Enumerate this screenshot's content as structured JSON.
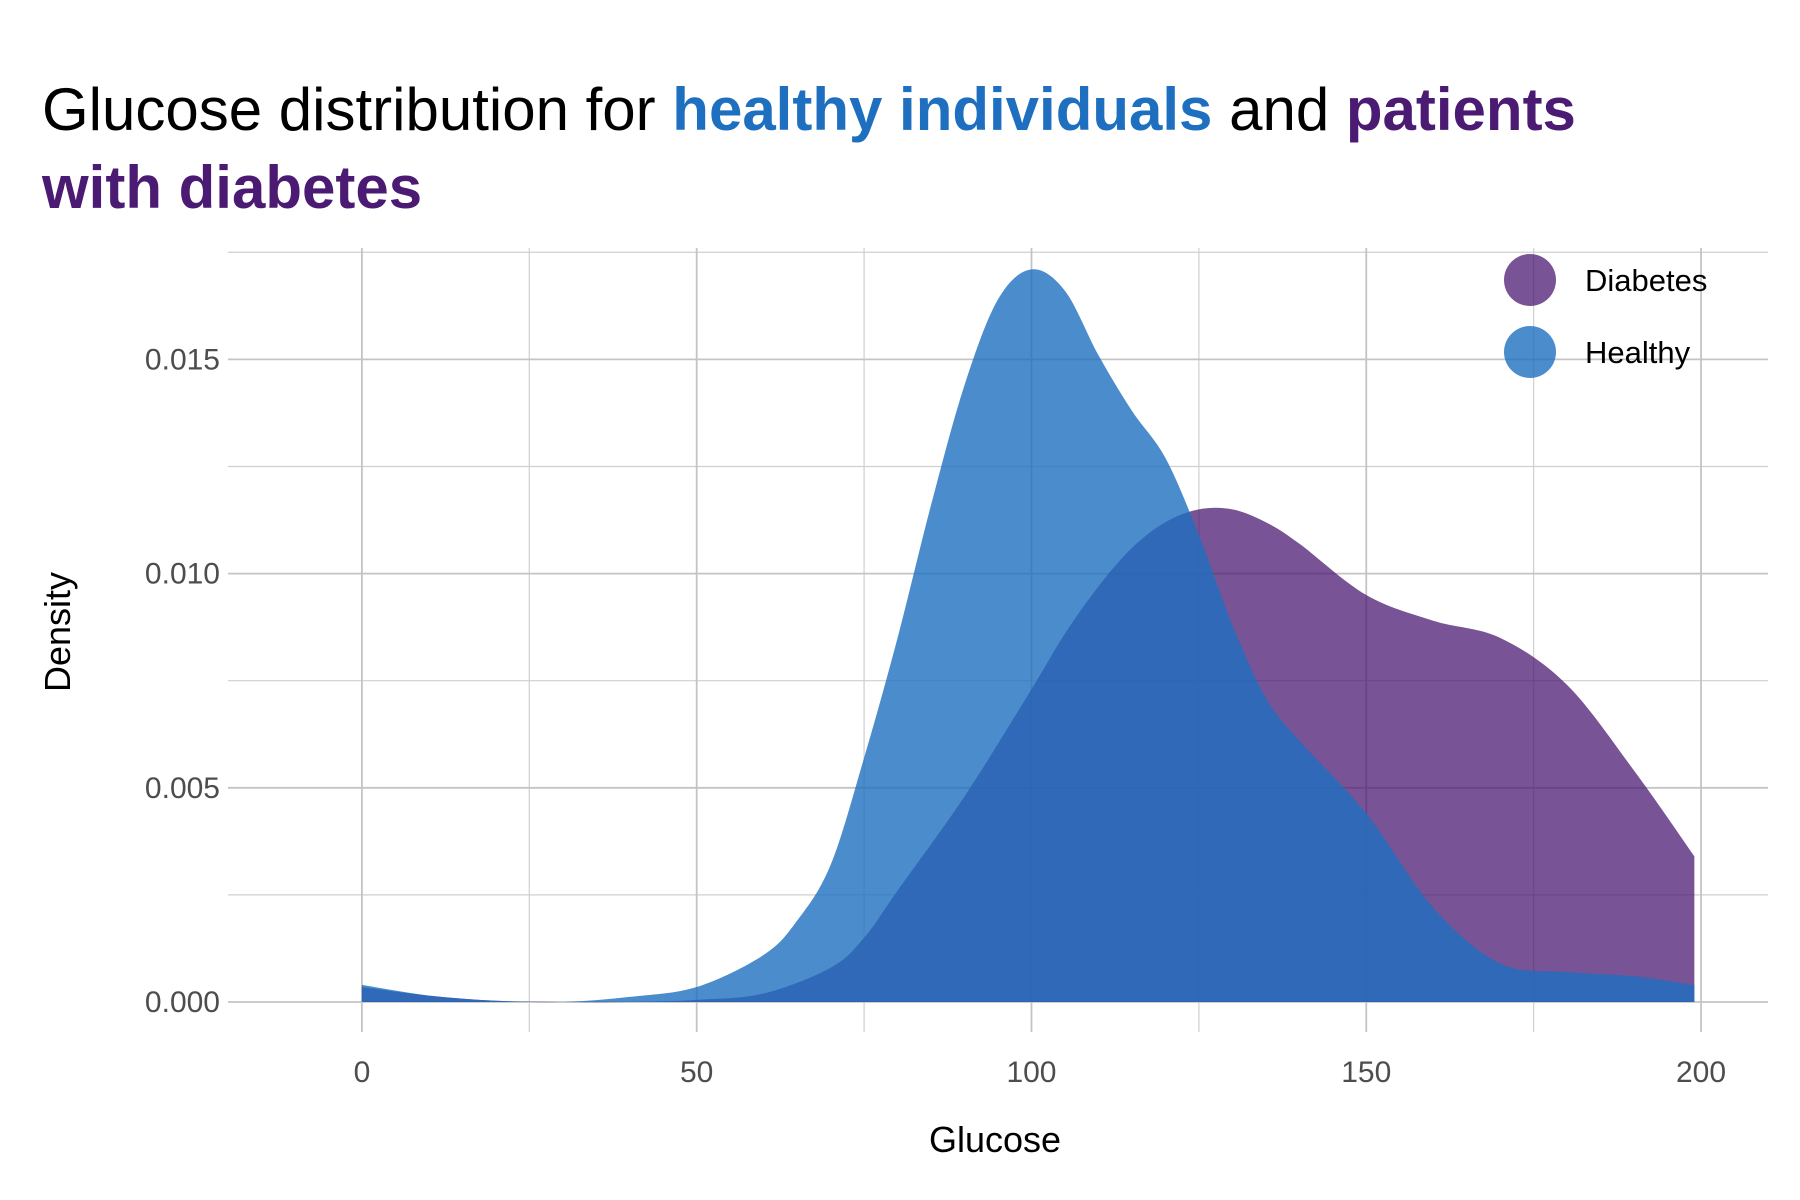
{
  "title": {
    "parts": [
      {
        "text": "Glucose distribution for ",
        "bold": false,
        "color": "#000000",
        "line": 1
      },
      {
        "text": "healthy individuals",
        "bold": true,
        "color": "#1E6FBF",
        "line": 1
      },
      {
        "text": " and ",
        "bold": false,
        "color": "#000000",
        "line": 1
      },
      {
        "text": "patients",
        "bold": true,
        "color": "#4B1A73",
        "line": 1
      },
      {
        "text": "with diabetes",
        "bold": true,
        "color": "#4B1A73",
        "line": 2
      }
    ]
  },
  "chart_data": {
    "type": "area",
    "xlabel": "Glucose",
    "ylabel": "Density",
    "xlim": [
      -20,
      210
    ],
    "ylim": [
      -0.0007,
      0.0176
    ],
    "x_ticks": [
      0,
      50,
      100,
      150,
      200
    ],
    "x_tick_labels": [
      "0",
      "50",
      "100",
      "150",
      "200"
    ],
    "y_ticks": [
      0.0,
      0.005,
      0.01,
      0.015
    ],
    "y_tick_labels": [
      "0.000",
      "0.005",
      "0.010",
      "0.015"
    ],
    "grid": true,
    "legend_position": "top-right",
    "series": [
      {
        "name": "Diabetes",
        "color": "#4B1A73",
        "opacity": 0.75,
        "x": [
          0,
          10,
          20,
          30,
          40,
          50,
          60,
          70,
          75,
          80,
          90,
          100,
          105,
          110,
          115,
          120,
          125,
          130,
          135,
          140,
          150,
          160,
          170,
          180,
          190,
          199
        ],
        "y": [
          0.00035,
          0.00015,
          3e-05,
          0.0,
          0.0,
          5e-05,
          0.0002,
          0.0008,
          0.0015,
          0.0026,
          0.0048,
          0.0073,
          0.0086,
          0.0097,
          0.0106,
          0.0112,
          0.0115,
          0.0115,
          0.0112,
          0.0107,
          0.0095,
          0.0089,
          0.0085,
          0.0074,
          0.0054,
          0.0034
        ]
      },
      {
        "name": "Healthy",
        "color": "#1E6FBF",
        "opacity": 0.8,
        "x": [
          0,
          10,
          20,
          30,
          40,
          50,
          60,
          65,
          70,
          75,
          80,
          85,
          90,
          95,
          100,
          105,
          110,
          115,
          120,
          125,
          130,
          135,
          140,
          150,
          160,
          170,
          180,
          190,
          199
        ],
        "y": [
          0.0004,
          0.00015,
          3e-05,
          0.0,
          0.00012,
          0.00035,
          0.0011,
          0.0019,
          0.0032,
          0.0057,
          0.0085,
          0.0116,
          0.0144,
          0.0164,
          0.0171,
          0.0166,
          0.0151,
          0.0138,
          0.0127,
          0.0109,
          0.0088,
          0.0071,
          0.0061,
          0.0044,
          0.0022,
          0.0009,
          0.0007,
          0.0006,
          0.0004
        ]
      }
    ]
  }
}
